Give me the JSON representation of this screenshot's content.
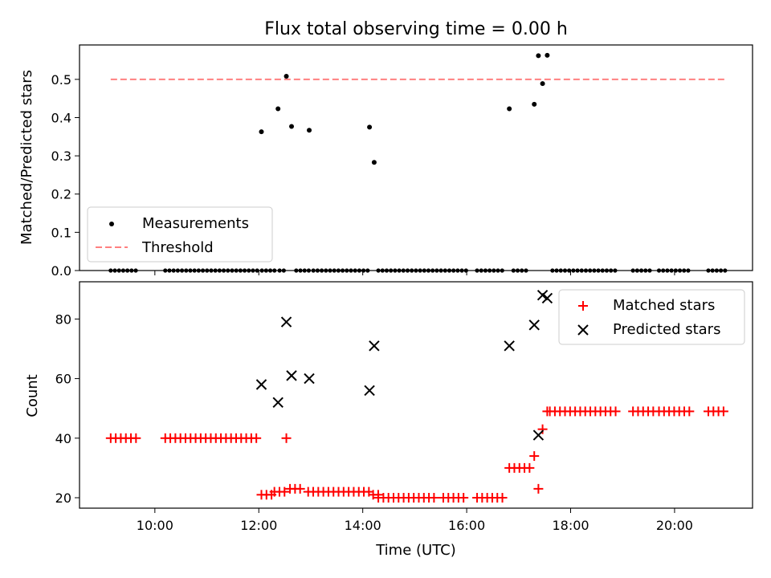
{
  "figure_title": "Flux total observing time = 0.00 h",
  "chart_data": [
    {
      "type": "scatter",
      "name": "ratio-panel",
      "title": "Flux total observing time = 0.00 h",
      "ylabel": "Matched/Predicted stars",
      "xlabel": "",
      "xlim": [
        8.55,
        21.5
      ],
      "ylim": [
        0,
        0.59
      ],
      "yticks": [
        0.0,
        0.1,
        0.2,
        0.3,
        0.4,
        0.5
      ],
      "ytick_labels": [
        "0.0",
        "0.1",
        "0.2",
        "0.3",
        "0.4",
        "0.5"
      ],
      "threshold": {
        "value": 0.5,
        "x_range": [
          9.15,
          21.0
        ],
        "color": "#ff8080"
      },
      "legend": {
        "location": "lower-left",
        "entries": [
          "Measurements",
          "Threshold"
        ]
      },
      "measurements": {
        "name": "Measurements",
        "color": "#000000",
        "x": [
          12.05,
          12.37,
          12.53,
          12.63,
          12.97,
          14.13,
          14.22,
          16.82,
          17.3,
          17.38,
          17.46,
          17.55
        ],
        "y": [
          0.363,
          0.423,
          0.508,
          0.377,
          0.367,
          0.375,
          0.283,
          0.423,
          0.435,
          0.562,
          0.489,
          0.563
        ]
      },
      "zero_segments": [
        [
          9.15,
          9.68
        ],
        [
          10.2,
          12.0
        ],
        [
          12.06,
          12.3
        ],
        [
          12.4,
          12.48
        ],
        [
          12.72,
          13.0
        ],
        [
          13.05,
          14.1
        ],
        [
          14.3,
          16.0
        ],
        [
          16.2,
          16.75
        ],
        [
          16.9,
          17.2
        ],
        [
          17.65,
          18.9
        ],
        [
          19.2,
          19.6
        ],
        [
          19.7,
          20.3
        ],
        [
          20.65,
          21.0
        ]
      ]
    },
    {
      "type": "scatter",
      "name": "count-panel",
      "xlabel": "Time (UTC)",
      "ylabel": "Count",
      "xlim": [
        8.55,
        21.5
      ],
      "ylim": [
        16.5,
        92.5
      ],
      "yticks": [
        20,
        40,
        60,
        80
      ],
      "ytick_labels": [
        "20",
        "40",
        "60",
        "80"
      ],
      "xticks": [
        10,
        12,
        14,
        16,
        18,
        20
      ],
      "xtick_labels": [
        "10:00",
        "12:00",
        "14:00",
        "16:00",
        "18:00",
        "20:00"
      ],
      "legend": {
        "location": "top-right",
        "entries": [
          "Matched stars",
          "Predicted stars"
        ]
      },
      "matched_segments": [
        {
          "x_range": [
            9.15,
            9.68
          ],
          "count": 40
        },
        {
          "x_range": [
            10.2,
            12.0
          ],
          "count": 40
        },
        {
          "x_range": [
            12.05,
            12.3
          ],
          "count": 21
        },
        {
          "x_range": [
            12.3,
            12.5
          ],
          "count": 22
        },
        {
          "x_range": [
            12.6,
            12.85
          ],
          "count": 23
        },
        {
          "x_range": [
            12.95,
            14.15
          ],
          "count": 22
        },
        {
          "x_range": [
            14.2,
            14.3
          ],
          "count": 21
        },
        {
          "x_range": [
            14.3,
            15.4
          ],
          "count": 20
        },
        {
          "x_range": [
            15.55,
            15.95
          ],
          "count": 20
        },
        {
          "x_range": [
            16.2,
            16.75
          ],
          "count": 20
        },
        {
          "x_range": [
            16.82,
            17.25
          ],
          "count": 30
        },
        {
          "x_range": [
            17.6,
            18.9
          ],
          "count": 49
        },
        {
          "x_range": [
            19.2,
            19.6
          ],
          "count": 49
        },
        {
          "x_range": [
            19.7,
            20.3
          ],
          "count": 49
        },
        {
          "x_range": [
            20.65,
            21.0
          ],
          "count": 49
        }
      ],
      "matched_points": {
        "name": "Matched stars",
        "color": "#ff0000",
        "x": [
          12.53,
          17.3,
          17.38,
          17.46,
          17.55
        ],
        "y": [
          40,
          34,
          23,
          43,
          49
        ]
      },
      "predicted_points": {
        "name": "Predicted stars",
        "color": "#000000",
        "x": [
          12.05,
          12.37,
          12.53,
          12.63,
          12.97,
          14.13,
          14.22,
          16.82,
          17.3,
          17.38,
          17.46,
          17.55
        ],
        "y": [
          58,
          52,
          79,
          61,
          60,
          56,
          71,
          71,
          78,
          41,
          88,
          87
        ]
      }
    }
  ]
}
